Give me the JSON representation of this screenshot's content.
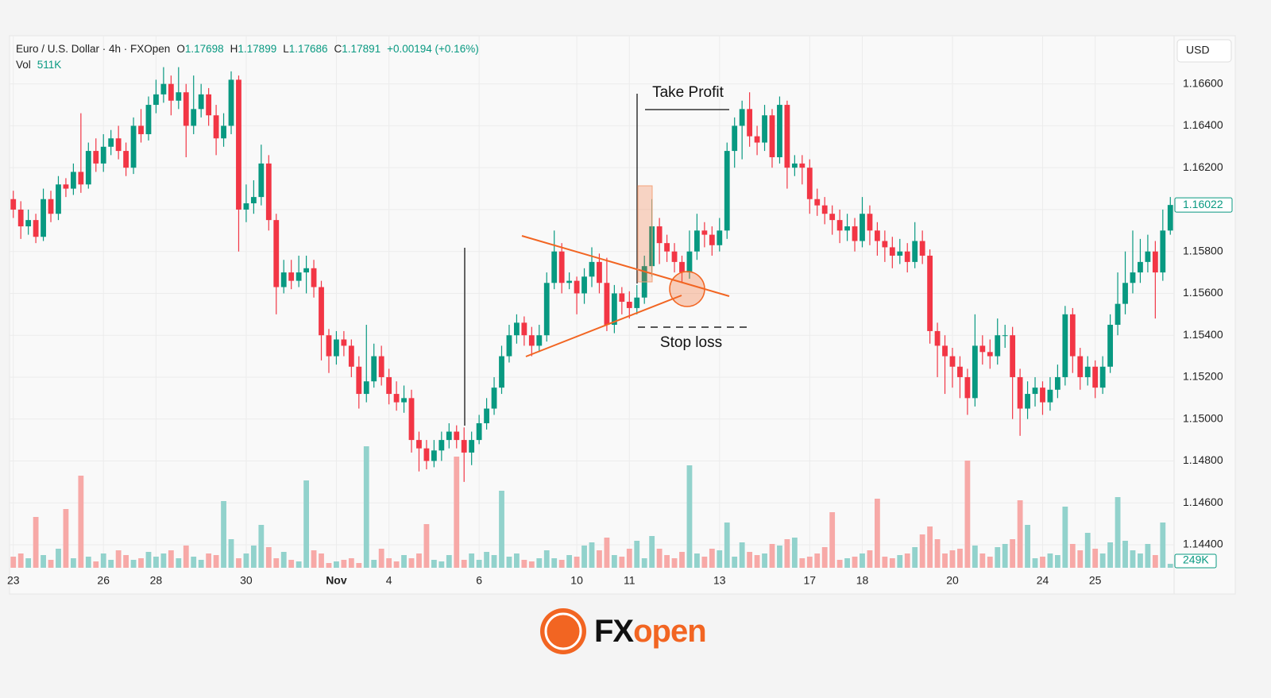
{
  "chart_data": {
    "type": "candlestick",
    "header": {
      "symbol": "Euro / U.S. Dollar · 4h · FXOpen",
      "ohlc": [
        [
          "O",
          "1.17698"
        ],
        [
          "H",
          "1.17899"
        ],
        [
          "L",
          "1.17686"
        ],
        [
          "C",
          "1.17891"
        ]
      ],
      "change": "+0.00194 (+0.16%)",
      "volume_label": "Vol",
      "volume_value": "511K"
    },
    "currency": "USD",
    "ylim": [
      1.1429,
      1.1683
    ],
    "yticks": [
      {
        "value": 1.144,
        "label": "1.14400"
      },
      {
        "value": 1.146,
        "label": "1.14600"
      },
      {
        "value": 1.148,
        "label": "1.14800"
      },
      {
        "value": 1.15,
        "label": "1.15000"
      },
      {
        "value": 1.152,
        "label": "1.15200"
      },
      {
        "value": 1.154,
        "label": "1.15400"
      },
      {
        "value": 1.156,
        "label": "1.15600"
      },
      {
        "value": 1.158,
        "label": "1.15800"
      },
      {
        "value": 1.16,
        "label": "1.16000"
      },
      {
        "value": 1.162,
        "label": "1.16200"
      },
      {
        "value": 1.164,
        "label": "1.16400"
      },
      {
        "value": 1.166,
        "label": "1.16600"
      }
    ],
    "xticks": [
      {
        "value": 0,
        "label": "23"
      },
      {
        "value": 12,
        "label": "26"
      },
      {
        "value": 19,
        "label": "28"
      },
      {
        "value": 31,
        "label": "30"
      },
      {
        "value": 43,
        "label": "Nov"
      },
      {
        "value": 50,
        "label": "4"
      },
      {
        "value": 62,
        "label": "6"
      },
      {
        "value": 75,
        "label": "10"
      },
      {
        "value": 82,
        "label": "11"
      },
      {
        "value": 94,
        "label": "13"
      },
      {
        "value": 106,
        "label": "17"
      },
      {
        "value": 113,
        "label": "18"
      },
      {
        "value": 125,
        "label": "20"
      },
      {
        "value": 137,
        "label": "24"
      },
      {
        "value": 144,
        "label": "25"
      }
    ],
    "grid": true,
    "up_color": "#089981",
    "down_color": "#f23645",
    "volume_up_color": "#92d2cc",
    "volume_down_color": "#f7a9a7",
    "vlim": [
      0,
      7650
    ],
    "last_volume_label": "249K",
    "annotations": {
      "take_profit": "Take Profit",
      "stop_loss": "Stop loss"
    },
    "logo": [
      "FX",
      "open"
    ],
    "candles": [
      [
        1.1605,
        1.1609,
        1.1596,
        1.16
      ],
      [
        1.16,
        1.1604,
        1.1586,
        1.1592
      ],
      [
        1.1592,
        1.16,
        1.1588,
        1.1595
      ],
      [
        1.1595,
        1.1598,
        1.1584,
        1.1587
      ],
      [
        1.1587,
        1.161,
        1.1585,
        1.1605
      ],
      [
        1.1605,
        1.1609,
        1.1594,
        1.1598
      ],
      [
        1.1598,
        1.1616,
        1.1595,
        1.1612
      ],
      [
        1.1612,
        1.1615,
        1.1606,
        1.161
      ],
      [
        1.161,
        1.1622,
        1.1607,
        1.1618
      ],
      [
        1.1618,
        1.1646,
        1.1608,
        1.1612
      ],
      [
        1.1612,
        1.1632,
        1.161,
        1.1628
      ],
      [
        1.1628,
        1.1634,
        1.1618,
        1.1622
      ],
      [
        1.1622,
        1.1636,
        1.1618,
        1.163
      ],
      [
        1.163,
        1.1638,
        1.1626,
        1.1634
      ],
      [
        1.1634,
        1.164,
        1.1624,
        1.1628
      ],
      [
        1.1628,
        1.1632,
        1.1616,
        1.162
      ],
      [
        1.162,
        1.1644,
        1.1617,
        1.164
      ],
      [
        1.164,
        1.1648,
        1.1632,
        1.1636
      ],
      [
        1.1636,
        1.1654,
        1.1633,
        1.165
      ],
      [
        1.165,
        1.1662,
        1.1646,
        1.1655
      ],
      [
        1.1655,
        1.1668,
        1.1651,
        1.166
      ],
      [
        1.166,
        1.1664,
        1.1645,
        1.1652
      ],
      [
        1.1652,
        1.1668,
        1.1648,
        1.1656
      ],
      [
        1.1656,
        1.166,
        1.1625,
        1.164
      ],
      [
        1.164,
        1.1664,
        1.1636,
        1.1648
      ],
      [
        1.1648,
        1.166,
        1.1644,
        1.1655
      ],
      [
        1.1655,
        1.1658,
        1.164,
        1.1645
      ],
      [
        1.1645,
        1.165,
        1.1626,
        1.1634
      ],
      [
        1.1634,
        1.1646,
        1.163,
        1.164
      ],
      [
        1.164,
        1.1666,
        1.1636,
        1.1662
      ],
      [
        1.1662,
        1.1664,
        1.158,
        1.16
      ],
      [
        1.16,
        1.1612,
        1.1594,
        1.1603
      ],
      [
        1.1603,
        1.1614,
        1.1598,
        1.1606
      ],
      [
        1.1606,
        1.1631,
        1.1602,
        1.1622
      ],
      [
        1.1622,
        1.1626,
        1.159,
        1.1595
      ],
      [
        1.1595,
        1.1598,
        1.155,
        1.1563
      ],
      [
        1.1563,
        1.1576,
        1.156,
        1.157
      ],
      [
        1.157,
        1.1576,
        1.1562,
        1.1566
      ],
      [
        1.1566,
        1.1578,
        1.1563,
        1.157
      ],
      [
        1.157,
        1.1578,
        1.156,
        1.1572
      ],
      [
        1.1572,
        1.1576,
        1.1558,
        1.1563
      ],
      [
        1.1563,
        1.1566,
        1.1528,
        1.154
      ],
      [
        1.154,
        1.1543,
        1.1522,
        1.153
      ],
      [
        1.153,
        1.1542,
        1.1526,
        1.1538
      ],
      [
        1.1538,
        1.1542,
        1.153,
        1.1535
      ],
      [
        1.1535,
        1.1538,
        1.152,
        1.1525
      ],
      [
        1.1525,
        1.153,
        1.1505,
        1.1512
      ],
      [
        1.1512,
        1.1545,
        1.1508,
        1.1518
      ],
      [
        1.1518,
        1.1536,
        1.1515,
        1.153
      ],
      [
        1.153,
        1.1535,
        1.1516,
        1.152
      ],
      [
        1.152,
        1.1524,
        1.1507,
        1.1512
      ],
      [
        1.1512,
        1.1518,
        1.1504,
        1.1508
      ],
      [
        1.1508,
        1.1516,
        1.1503,
        1.151
      ],
      [
        1.151,
        1.1514,
        1.1484,
        1.149
      ],
      [
        1.149,
        1.1494,
        1.1475,
        1.1486
      ],
      [
        1.1486,
        1.149,
        1.1476,
        1.148
      ],
      [
        1.148,
        1.149,
        1.1477,
        1.1485
      ],
      [
        1.1485,
        1.1494,
        1.148,
        1.149
      ],
      [
        1.149,
        1.1498,
        1.1486,
        1.1494
      ],
      [
        1.1494,
        1.1497,
        1.1486,
        1.149
      ],
      [
        1.149,
        1.1496,
        1.147,
        1.1484
      ],
      [
        1.1484,
        1.1494,
        1.1478,
        1.149
      ],
      [
        1.149,
        1.1502,
        1.1488,
        1.1498
      ],
      [
        1.1498,
        1.151,
        1.1495,
        1.1505
      ],
      [
        1.1505,
        1.152,
        1.1502,
        1.1515
      ],
      [
        1.1515,
        1.1535,
        1.1512,
        1.153
      ],
      [
        1.153,
        1.1545,
        1.1527,
        1.154
      ],
      [
        1.154,
        1.155,
        1.1536,
        1.1546
      ],
      [
        1.1546,
        1.1549,
        1.1535,
        1.154
      ],
      [
        1.154,
        1.1544,
        1.153,
        1.1535
      ],
      [
        1.1535,
        1.1545,
        1.1532,
        1.154
      ],
      [
        1.154,
        1.157,
        1.1537,
        1.1565
      ],
      [
        1.1565,
        1.159,
        1.1562,
        1.158
      ],
      [
        1.158,
        1.1584,
        1.156,
        1.1565
      ],
      [
        1.1565,
        1.157,
        1.1562,
        1.1566
      ],
      [
        1.1566,
        1.1568,
        1.155,
        1.156
      ],
      [
        1.156,
        1.1572,
        1.1555,
        1.1568
      ],
      [
        1.1568,
        1.1582,
        1.1563,
        1.1575
      ],
      [
        1.1575,
        1.1579,
        1.156,
        1.1565
      ],
      [
        1.1565,
        1.1577,
        1.1542,
        1.1545
      ],
      [
        1.1545,
        1.1564,
        1.1541,
        1.156
      ],
      [
        1.156,
        1.1563,
        1.155,
        1.1556
      ],
      [
        1.1556,
        1.1561,
        1.1548,
        1.1553
      ],
      [
        1.1553,
        1.1564,
        1.155,
        1.1558
      ],
      [
        1.1558,
        1.1578,
        1.1555,
        1.1573
      ],
      [
        1.1573,
        1.1605,
        1.1568,
        1.1592
      ],
      [
        1.1592,
        1.1596,
        1.1574,
        1.1584
      ],
      [
        1.1584,
        1.1588,
        1.1575,
        1.158
      ],
      [
        1.158,
        1.1584,
        1.157,
        1.1575
      ],
      [
        1.1575,
        1.1578,
        1.1565,
        1.157
      ],
      [
        1.157,
        1.159,
        1.1567,
        1.158
      ],
      [
        1.158,
        1.1598,
        1.1576,
        1.159
      ],
      [
        1.159,
        1.1594,
        1.1582,
        1.1588
      ],
      [
        1.1588,
        1.1592,
        1.1578,
        1.1583
      ],
      [
        1.1583,
        1.1596,
        1.158,
        1.159
      ],
      [
        1.159,
        1.1632,
        1.1586,
        1.1628
      ],
      [
        1.1628,
        1.1644,
        1.162,
        1.164
      ],
      [
        1.164,
        1.1652,
        1.1624,
        1.1648
      ],
      [
        1.1648,
        1.1656,
        1.163,
        1.1635
      ],
      [
        1.1635,
        1.164,
        1.1626,
        1.1632
      ],
      [
        1.1632,
        1.165,
        1.1628,
        1.1645
      ],
      [
        1.1645,
        1.1648,
        1.162,
        1.1625
      ],
      [
        1.1625,
        1.1654,
        1.1622,
        1.165
      ],
      [
        1.165,
        1.1652,
        1.161,
        1.162
      ],
      [
        1.162,
        1.1626,
        1.1616,
        1.1622
      ],
      [
        1.1622,
        1.1626,
        1.1612,
        1.162
      ],
      [
        1.162,
        1.1624,
        1.1598,
        1.1605
      ],
      [
        1.1605,
        1.161,
        1.1597,
        1.1602
      ],
      [
        1.1602,
        1.1606,
        1.1593,
        1.1598
      ],
      [
        1.1598,
        1.1602,
        1.1588,
        1.1595
      ],
      [
        1.1595,
        1.16,
        1.1584,
        1.159
      ],
      [
        1.159,
        1.1598,
        1.1585,
        1.1592
      ],
      [
        1.1592,
        1.1596,
        1.158,
        1.1585
      ],
      [
        1.1585,
        1.1606,
        1.1582,
        1.1598
      ],
      [
        1.1598,
        1.1602,
        1.1583,
        1.159
      ],
      [
        1.159,
        1.1594,
        1.1578,
        1.1585
      ],
      [
        1.1585,
        1.159,
        1.1575,
        1.1582
      ],
      [
        1.1582,
        1.1587,
        1.1572,
        1.1578
      ],
      [
        1.1578,
        1.1586,
        1.1574,
        1.158
      ],
      [
        1.158,
        1.1584,
        1.157,
        1.1575
      ],
      [
        1.1575,
        1.1594,
        1.1572,
        1.1585
      ],
      [
        1.1585,
        1.159,
        1.1574,
        1.1578
      ],
      [
        1.1578,
        1.1581,
        1.1536,
        1.1542
      ],
      [
        1.1542,
        1.1546,
        1.152,
        1.1535
      ],
      [
        1.1535,
        1.154,
        1.1512,
        1.153
      ],
      [
        1.153,
        1.1534,
        1.1515,
        1.1525
      ],
      [
        1.1525,
        1.153,
        1.151,
        1.152
      ],
      [
        1.152,
        1.1524,
        1.1502,
        1.151
      ],
      [
        1.151,
        1.155,
        1.1506,
        1.1535
      ],
      [
        1.1535,
        1.154,
        1.1526,
        1.1532
      ],
      [
        1.1532,
        1.1538,
        1.1524,
        1.153
      ],
      [
        1.153,
        1.1548,
        1.1526,
        1.154
      ],
      [
        1.154,
        1.1545,
        1.1534,
        1.154
      ],
      [
        1.154,
        1.1544,
        1.15,
        1.152
      ],
      [
        1.152,
        1.1524,
        1.1492,
        1.1505
      ],
      [
        1.1505,
        1.1518,
        1.15,
        1.1512
      ],
      [
        1.1512,
        1.152,
        1.1506,
        1.1515
      ],
      [
        1.1515,
        1.1518,
        1.1502,
        1.1508
      ],
      [
        1.1508,
        1.152,
        1.1504,
        1.1514
      ],
      [
        1.1514,
        1.1526,
        1.151,
        1.152
      ],
      [
        1.152,
        1.1554,
        1.1516,
        1.155
      ],
      [
        1.155,
        1.1553,
        1.1522,
        1.153
      ],
      [
        1.153,
        1.1534,
        1.1514,
        1.152
      ],
      [
        1.152,
        1.153,
        1.1516,
        1.1525
      ],
      [
        1.1525,
        1.1528,
        1.151,
        1.1515
      ],
      [
        1.1515,
        1.153,
        1.1512,
        1.1525
      ],
      [
        1.1525,
        1.155,
        1.1522,
        1.1545
      ],
      [
        1.1545,
        1.157,
        1.154,
        1.1555
      ],
      [
        1.1555,
        1.158,
        1.155,
        1.1565
      ],
      [
        1.1565,
        1.159,
        1.156,
        1.157
      ],
      [
        1.157,
        1.1586,
        1.1565,
        1.1575
      ],
      [
        1.1575,
        1.1588,
        1.157,
        1.158
      ],
      [
        1.158,
        1.1585,
        1.1548,
        1.157
      ],
      [
        1.157,
        1.16,
        1.1566,
        1.159
      ],
      [
        1.159,
        1.1606,
        1.1588,
        1.16022
      ]
    ],
    "volume": [
      700,
      900,
      600,
      3200,
      800,
      500,
      1200,
      3700,
      600,
      5800,
      700,
      400,
      900,
      500,
      1100,
      800,
      500,
      600,
      1000,
      700,
      900,
      1100,
      600,
      1400,
      700,
      500,
      900,
      800,
      4200,
      1800,
      600,
      900,
      1400,
      2700,
      1300,
      600,
      1000,
      500,
      400,
      5500,
      1100,
      900,
      300,
      400,
      500,
      600,
      300,
      7650,
      500,
      1200,
      600,
      400,
      800,
      600,
      900,
      2750,
      500,
      400,
      800,
      7000,
      500,
      900,
      500,
      1000,
      800,
      4850,
      700,
      900,
      500,
      400,
      600,
      1100,
      600,
      500,
      800,
      700,
      1400,
      1600,
      1100,
      1900,
      800,
      700,
      1200,
      1700,
      600,
      2000,
      1200,
      800,
      600,
      1000,
      6450,
      900,
      700,
      1200,
      1100,
      2850,
      700,
      1600,
      1000,
      800,
      900,
      1500,
      1400,
      1800,
      1900,
      600,
      700,
      900,
      1300,
      3500,
      500,
      600,
      700,
      900,
      1100,
      4350,
      700,
      600,
      800,
      900,
      1300,
      2100,
      2600,
      1800,
      900,
      1100,
      1200,
      6750,
      1400,
      900,
      700,
      1300,
      1500,
      1800,
      4250,
      2700,
      600,
      700,
      900,
      800,
      3850,
      1500,
      1100,
      2200,
      1200,
      900,
      1600,
      4450,
      1700,
      1100,
      900,
      1500,
      800,
      2850,
      249
    ]
  }
}
